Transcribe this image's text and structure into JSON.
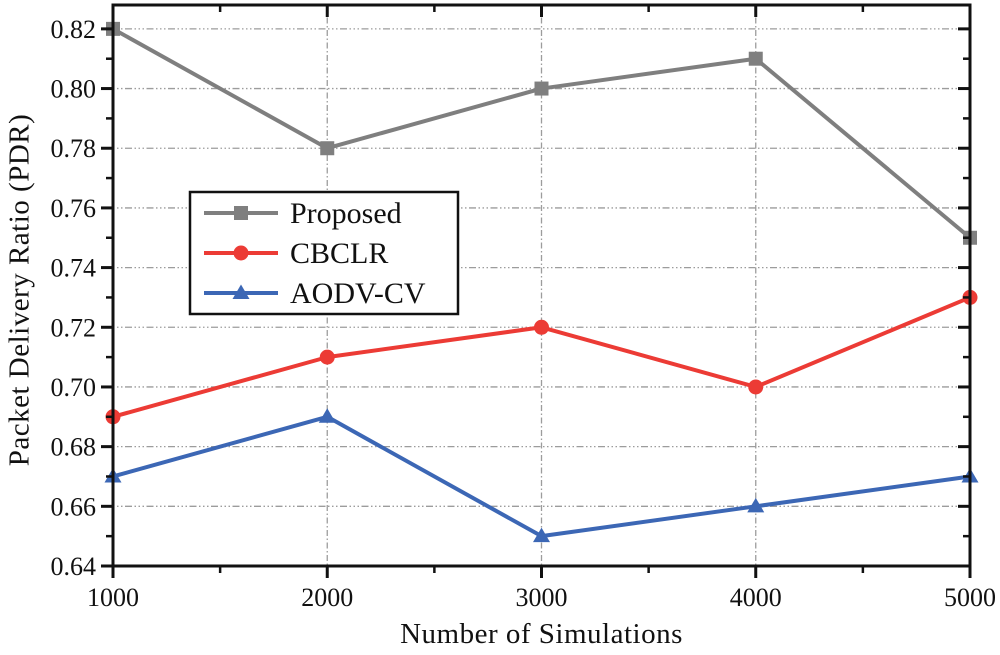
{
  "figure": {
    "background": "#ffffff",
    "axis_color": "#111111",
    "grid_color": "#9c9c9c",
    "text_color": "#111111"
  },
  "chart_data": {
    "type": "line",
    "title": "",
    "xlabel": "Number of Simulations",
    "ylabel": "Packet Delivery Ratio (PDR)",
    "x": [
      1000,
      2000,
      3000,
      4000,
      5000
    ],
    "xlim": [
      1000,
      5000
    ],
    "ylim": [
      0.64,
      0.828
    ],
    "xticks_major": [
      1000,
      2000,
      3000,
      4000,
      5000
    ],
    "xtick_labels": [
      "1000",
      "2000",
      "3000",
      "4000",
      "5000"
    ],
    "xticks_minor": [
      1500,
      2500,
      3500,
      4500
    ],
    "yticks_major": [
      0.64,
      0.66,
      0.68,
      0.7,
      0.72,
      0.74,
      0.76,
      0.78,
      0.8,
      0.82
    ],
    "ytick_labels": [
      "0.64",
      "0.66",
      "0.68",
      "0.70",
      "0.72",
      "0.74",
      "0.76",
      "0.78",
      "0.80",
      "0.82"
    ],
    "yticks_minor": [
      0.65,
      0.67,
      0.69,
      0.71,
      0.73,
      0.75,
      0.77,
      0.79,
      0.81
    ],
    "grid": {
      "horizontal": true,
      "vertical": true
    },
    "legend": {
      "position": "upper-left-inside",
      "entries": [
        "Proposed",
        "CBCLR",
        "AODV-CV"
      ]
    },
    "series": [
      {
        "name": "Proposed",
        "color": "#7f7f7f",
        "marker": "square",
        "values": [
          0.82,
          0.78,
          0.8,
          0.81,
          0.75
        ]
      },
      {
        "name": "CBCLR",
        "color": "#ec3b35",
        "marker": "circle",
        "values": [
          0.69,
          0.71,
          0.72,
          0.7,
          0.73
        ]
      },
      {
        "name": "AODV-CV",
        "color": "#3c67b5",
        "marker": "triangle",
        "values": [
          0.67,
          0.69,
          0.65,
          0.66,
          0.67
        ]
      }
    ]
  }
}
